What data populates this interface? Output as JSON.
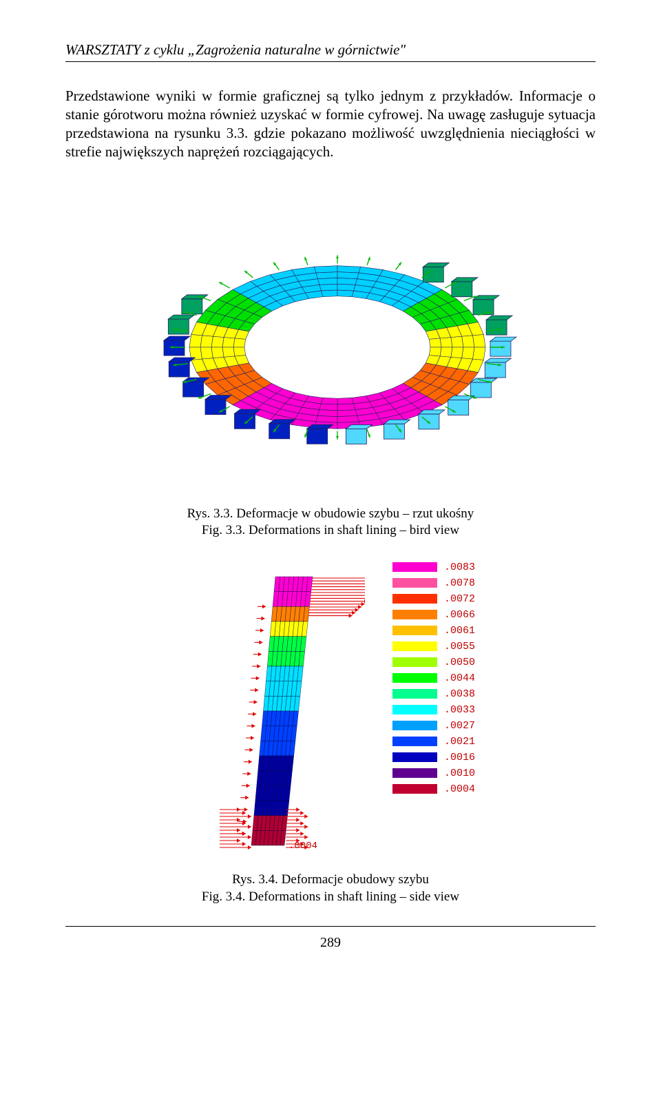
{
  "header": {
    "title": "WARSZTATY z cyklu „Zagrożenia naturalne w górnictwie\""
  },
  "body": {
    "paragraph": "Przedstawione wyniki w formie graficznej są tylko jednym z przykładów. Informacje o stanie górotworu można również uzyskać w formie cyfrowej. Na uwagę zasługuje sytuacja przedstawiona na rysunku 3.3. gdzie pokazano możliwość uwzględnienia nieciągłości w strefie największych naprężeń rozciągających."
  },
  "fig33": {
    "caption_pl": "Rys. 3.3. Deformacje w obudowie szybu – rzut ukośny",
    "caption_en": "Fig. 3.3. Deformations in shaft lining – bird view",
    "colors": {
      "mesh_front": "#ff00d0",
      "mesh_mid1": "#ff6600",
      "mesh_mid2": "#ffff00",
      "mesh_mid3": "#00e000",
      "mesh_back": "#00d0ff",
      "block_dark": "#0020c0",
      "block_light": "#50d8ff",
      "block_green": "#00a060",
      "arrow": "#00b800",
      "wire": "#202060"
    }
  },
  "fig34": {
    "caption_pl": "Rys. 3.4. Deformacje obudowy szybu",
    "caption_en": "Fig. 3.4. Deformations in shaft lining – side view",
    "bottom_label": ".0004",
    "legend": [
      {
        "value": ".0083",
        "color": "#ff00d0"
      },
      {
        "value": ".0078",
        "color": "#ff50a0"
      },
      {
        "value": ".0072",
        "color": "#ff3000"
      },
      {
        "value": ".0066",
        "color": "#ff8000"
      },
      {
        "value": ".0061",
        "color": "#ffc000"
      },
      {
        "value": ".0055",
        "color": "#ffff00"
      },
      {
        "value": ".0050",
        "color": "#a0ff00"
      },
      {
        "value": ".0044",
        "color": "#00ff00"
      },
      {
        "value": ".0038",
        "color": "#00ff90"
      },
      {
        "value": ".0033",
        "color": "#00ffff"
      },
      {
        "value": ".0027",
        "color": "#00a0ff"
      },
      {
        "value": ".0021",
        "color": "#0040ff"
      },
      {
        "value": ".0016",
        "color": "#0000c0"
      },
      {
        "value": ".0010",
        "color": "#600090"
      },
      {
        "value": ".0004",
        "color": "#c00030"
      }
    ],
    "body_colors": {
      "top": "#ff00d0",
      "upper": "#ff8000",
      "yellow": "#ffff00",
      "green": "#00ff40",
      "cyan": "#00e0ff",
      "blue": "#0040ff",
      "darkblue": "#0000a0",
      "bottom": "#b00030",
      "arrow": "#e00000",
      "wire": "#000040"
    }
  },
  "footer": {
    "page": "289"
  }
}
